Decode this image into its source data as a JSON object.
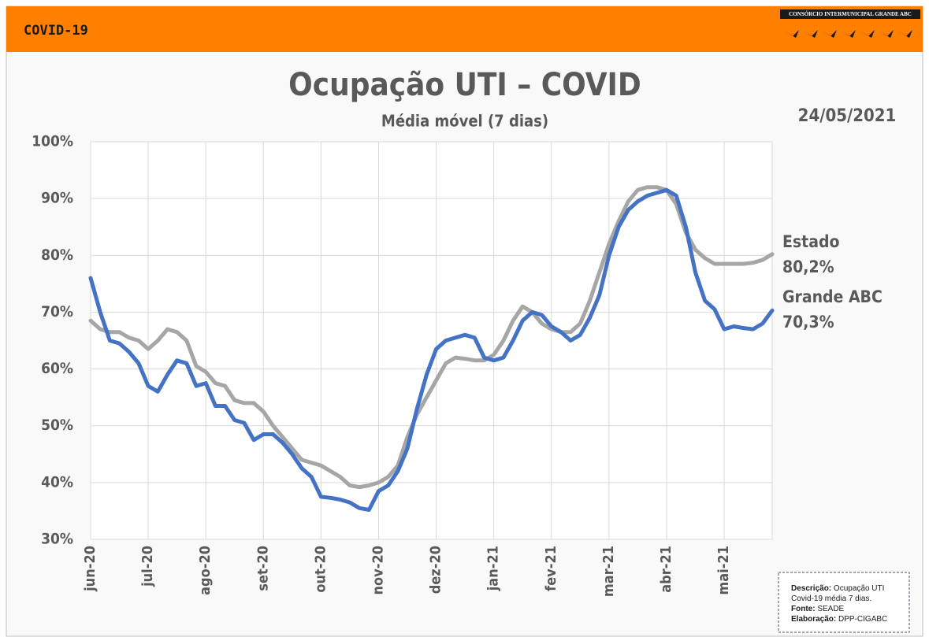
{
  "header": {
    "tag": "COVID-19",
    "logo": "CONSÓRCIO INTERMUNICIPAL GRANDE ABC"
  },
  "chart_data": {
    "type": "line",
    "title": "Ocupação UTI – COVID",
    "subtitle": "Média móvel (7 dias)",
    "date": "24/05/2021",
    "categories": [
      "jun-20",
      null,
      null,
      null,
      null,
      null,
      "jul-20",
      null,
      null,
      null,
      null,
      null,
      "ago-20",
      null,
      null,
      null,
      null,
      null,
      "set-20",
      null,
      null,
      null,
      null,
      null,
      "out-20",
      null,
      null,
      null,
      null,
      null,
      "nov-20",
      null,
      null,
      null,
      null,
      null,
      "dez-20",
      null,
      null,
      null,
      null,
      null,
      "jan-21",
      null,
      null,
      null,
      null,
      null,
      "fev-21",
      null,
      null,
      null,
      null,
      null,
      "mar-21",
      null,
      null,
      null,
      null,
      null,
      "abr-21",
      null,
      null,
      null,
      null,
      null,
      "mai-21",
      null,
      null,
      null,
      null,
      null
    ],
    "series": [
      {
        "name": "Estado",
        "color": "#a6a6a6",
        "values": [
          68.5,
          67,
          66.5,
          66.5,
          65.5,
          65,
          63.5,
          65,
          67,
          66.5,
          65,
          60.5,
          59.5,
          57.5,
          57,
          54.5,
          54,
          54,
          52.5,
          50,
          48,
          46,
          44,
          43.5,
          43,
          42,
          41,
          39.5,
          39.2,
          39.5,
          40,
          41,
          43,
          48,
          52,
          55,
          58,
          61,
          62,
          61.8,
          61.5,
          61.5,
          62.5,
          65,
          68.5,
          71,
          70,
          68,
          67,
          66.5,
          66.5,
          68,
          72,
          77,
          82,
          86,
          89.5,
          91.5,
          92,
          92,
          91.5,
          89,
          84,
          81,
          79.5,
          78.5,
          78.5,
          78.5,
          78.5,
          78.7,
          79.2,
          80.2
        ],
        "value_labels": [
          null,
          null,
          null,
          null,
          null,
          null,
          null,
          null,
          null,
          null,
          null,
          null,
          null,
          null,
          null,
          null,
          null,
          null,
          null,
          null,
          null,
          null,
          null,
          null,
          null,
          null,
          null,
          null,
          null,
          null,
          null,
          null,
          null,
          null,
          null,
          null,
          null,
          null,
          null,
          null,
          null,
          null,
          null,
          null,
          null,
          null,
          null,
          null,
          null,
          null,
          null,
          null,
          null,
          null,
          null,
          null,
          null,
          null,
          null,
          null,
          null,
          null,
          null,
          null,
          null,
          null,
          null,
          null,
          null,
          null,
          null,
          "80,2%"
        ]
      },
      {
        "name": "Grande ABC",
        "color": "#4472c4",
        "values": [
          76,
          70,
          65,
          64.5,
          63,
          61,
          57,
          56,
          59,
          61.5,
          61,
          57,
          57.5,
          53.5,
          53.5,
          51,
          50.5,
          47.5,
          48.5,
          48.5,
          47,
          45,
          42.5,
          41,
          37.5,
          37.3,
          37,
          36.5,
          35.5,
          35.2,
          38.5,
          39.5,
          42,
          46,
          53,
          59,
          63.5,
          65,
          65.5,
          66,
          65.5,
          62,
          61.5,
          62,
          65,
          68.5,
          70,
          69.5,
          67.5,
          66.5,
          65,
          66,
          69,
          73,
          80,
          85,
          88,
          89.5,
          90.5,
          91,
          91.5,
          90.5,
          85,
          77,
          72,
          70.5,
          67,
          67.5,
          67.2,
          67,
          68,
          70.3
        ],
        "value_labels": [
          null,
          null,
          null,
          null,
          null,
          null,
          null,
          null,
          null,
          null,
          null,
          null,
          null,
          null,
          null,
          null,
          null,
          null,
          null,
          null,
          null,
          null,
          null,
          null,
          null,
          null,
          null,
          null,
          null,
          null,
          null,
          null,
          null,
          null,
          null,
          null,
          null,
          null,
          null,
          null,
          null,
          null,
          null,
          null,
          null,
          null,
          null,
          null,
          null,
          null,
          null,
          null,
          null,
          null,
          null,
          null,
          null,
          null,
          null,
          null,
          null,
          null,
          null,
          null,
          null,
          null,
          null,
          null,
          null,
          null,
          null,
          "70,3%"
        ]
      }
    ],
    "ylim": [
      30,
      100
    ],
    "yticks": [
      {
        "value": 30,
        "label": "30%"
      },
      {
        "value": 40,
        "label": "40%"
      },
      {
        "value": 50,
        "label": "50%"
      },
      {
        "value": 60,
        "label": "60%"
      },
      {
        "value": 70,
        "label": "70%"
      },
      {
        "value": 80,
        "label": "80%"
      },
      {
        "value": 90,
        "label": "90%"
      },
      {
        "value": 100,
        "label": "100%"
      }
    ],
    "grid": true
  },
  "notes": [
    {
      "label": "Descrição:",
      "text": "Ocupação UTI"
    },
    {
      "label": null,
      "text": "Covid-19 média 7 dias."
    },
    {
      "label": "Fonte:",
      "text": "SEADE"
    },
    {
      "label": "Elaboração:",
      "text": "DPP-CIGABC"
    }
  ]
}
